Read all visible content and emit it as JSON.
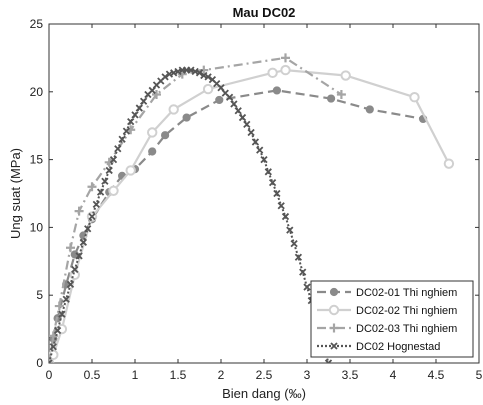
{
  "chart_data": {
    "type": "line",
    "title": "Mau DC02",
    "xlabel": "Bien dang (‰)",
    "ylabel": "Ung suat (MPa)",
    "xlim": [
      0,
      5
    ],
    "ylim": [
      0,
      25
    ],
    "xticks": [
      "0",
      "0.5",
      "1",
      "1.5",
      "2",
      "2.5",
      "3",
      "3.5",
      "4",
      "4.5",
      "5"
    ],
    "yticks": [
      "0",
      "5",
      "10",
      "15",
      "20",
      "25"
    ],
    "grid": false,
    "legend_position": "bottom-right",
    "series": [
      {
        "name": "DC02-01 Thi nghiem",
        "color": "#8a8a8a",
        "line_style": "dashed",
        "marker": "circle",
        "x": [
          0.0,
          0.05,
          0.1,
          0.2,
          0.3,
          0.4,
          0.5,
          0.7,
          0.85,
          1.0,
          1.2,
          1.35,
          1.6,
          1.98,
          2.65,
          3.28,
          3.73,
          4.35
        ],
        "y": [
          0.0,
          1.8,
          3.3,
          5.8,
          8.0,
          9.4,
          10.6,
          12.6,
          13.8,
          14.3,
          15.6,
          16.8,
          18.1,
          19.4,
          20.1,
          19.5,
          18.7,
          18.0
        ]
      },
      {
        "name": "DC02-02 Thi nghiem",
        "color": "#d0d0d0",
        "line_style": "solid",
        "marker": "circle-open",
        "x": [
          0.0,
          0.05,
          0.15,
          0.3,
          0.5,
          0.75,
          0.95,
          1.2,
          1.45,
          1.85,
          2.6,
          2.75,
          3.45,
          4.25,
          4.65
        ],
        "y": [
          0.0,
          0.6,
          2.5,
          6.5,
          10.8,
          12.7,
          14.2,
          17.0,
          18.7,
          20.2,
          21.4,
          21.6,
          21.2,
          19.6,
          14.7
        ]
      },
      {
        "name": "DC02-03 Thi nghiem",
        "color": "#a5a5a5",
        "line_style": "dashdot",
        "marker": "plus",
        "x": [
          0.0,
          0.05,
          0.12,
          0.25,
          0.35,
          0.5,
          0.7,
          0.95,
          1.25,
          1.55,
          1.8,
          2.75,
          3.4
        ],
        "y": [
          0.0,
          2.0,
          4.2,
          8.5,
          11.2,
          13.0,
          14.8,
          17.2,
          19.8,
          21.3,
          21.6,
          22.5,
          19.8
        ]
      },
      {
        "name": "DC02 Hognestad",
        "color": "#555555",
        "line_style": "dotted",
        "marker": "x",
        "x": [
          0.0,
          0.05,
          0.1,
          0.15,
          0.2,
          0.25,
          0.3,
          0.35,
          0.4,
          0.45,
          0.5,
          0.55,
          0.6,
          0.65,
          0.7,
          0.75,
          0.8,
          0.85,
          0.9,
          0.95,
          1.0,
          1.05,
          1.1,
          1.15,
          1.2,
          1.25,
          1.3,
          1.35,
          1.4,
          1.45,
          1.5,
          1.55,
          1.6,
          1.65,
          1.7,
          1.75,
          1.8,
          1.85,
          1.9,
          1.95,
          2.0,
          2.05,
          2.1,
          2.15,
          2.2,
          2.25,
          2.3,
          2.35,
          2.4,
          2.45,
          2.5,
          2.55,
          2.6,
          2.65,
          2.7,
          2.75,
          2.8,
          2.85,
          2.9,
          2.95,
          3.0,
          3.05,
          3.1,
          3.15,
          3.2,
          3.25
        ],
        "y": [
          0.0,
          1.2,
          2.4,
          3.6,
          4.7,
          5.8,
          6.9,
          7.9,
          8.9,
          9.9,
          10.8,
          11.7,
          12.6,
          13.4,
          14.2,
          15.0,
          15.8,
          16.5,
          17.1,
          17.8,
          18.3,
          18.8,
          19.3,
          19.8,
          20.1,
          20.5,
          20.8,
          21.1,
          21.3,
          21.4,
          21.5,
          21.6,
          21.6,
          21.6,
          21.5,
          21.4,
          21.2,
          21.1,
          20.9,
          20.6,
          20.3,
          19.9,
          19.6,
          19.1,
          18.6,
          18.1,
          17.6,
          17.0,
          16.3,
          15.7,
          15.0,
          14.1,
          13.3,
          12.5,
          11.6,
          10.8,
          9.8,
          8.8,
          7.8,
          6.7,
          5.6,
          4.6,
          3.5,
          2.3,
          1.1,
          0.0
        ]
      }
    ]
  }
}
